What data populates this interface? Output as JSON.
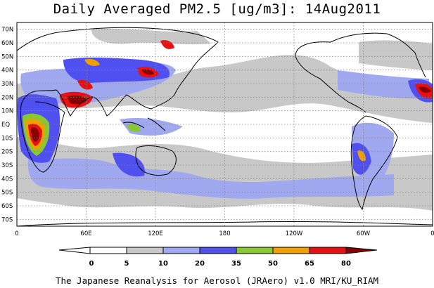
{
  "title": "Daily Averaged PM2.5 [ug/m3]: 14Aug2011",
  "footer": "The Japanese Reanalysis for Aerosol (JRAero) v1.0 MRI/KU_RIAM",
  "map": {
    "lat_ticks": [
      "70N",
      "60N",
      "50N",
      "40N",
      "30N",
      "20N",
      "10N",
      "EQ",
      "10S",
      "20S",
      "30S",
      "40S",
      "50S",
      "60S",
      "70S"
    ],
    "lon_ticks": [
      "0",
      "60E",
      "120E",
      "180",
      "120W",
      "60W",
      "0"
    ],
    "gridlines": true
  },
  "legend": {
    "labels": [
      "0",
      "5",
      "10",
      "20",
      "35",
      "50",
      "65",
      "80"
    ],
    "colors": [
      "#ffffff",
      "#c8c8c8",
      "#a0a8f0",
      "#5050f0",
      "#88c830",
      "#f0a000",
      "#e81010",
      "#880000"
    ]
  },
  "icons": [
    "legend-left-arrow-icon",
    "legend-right-arrow-icon"
  ]
}
